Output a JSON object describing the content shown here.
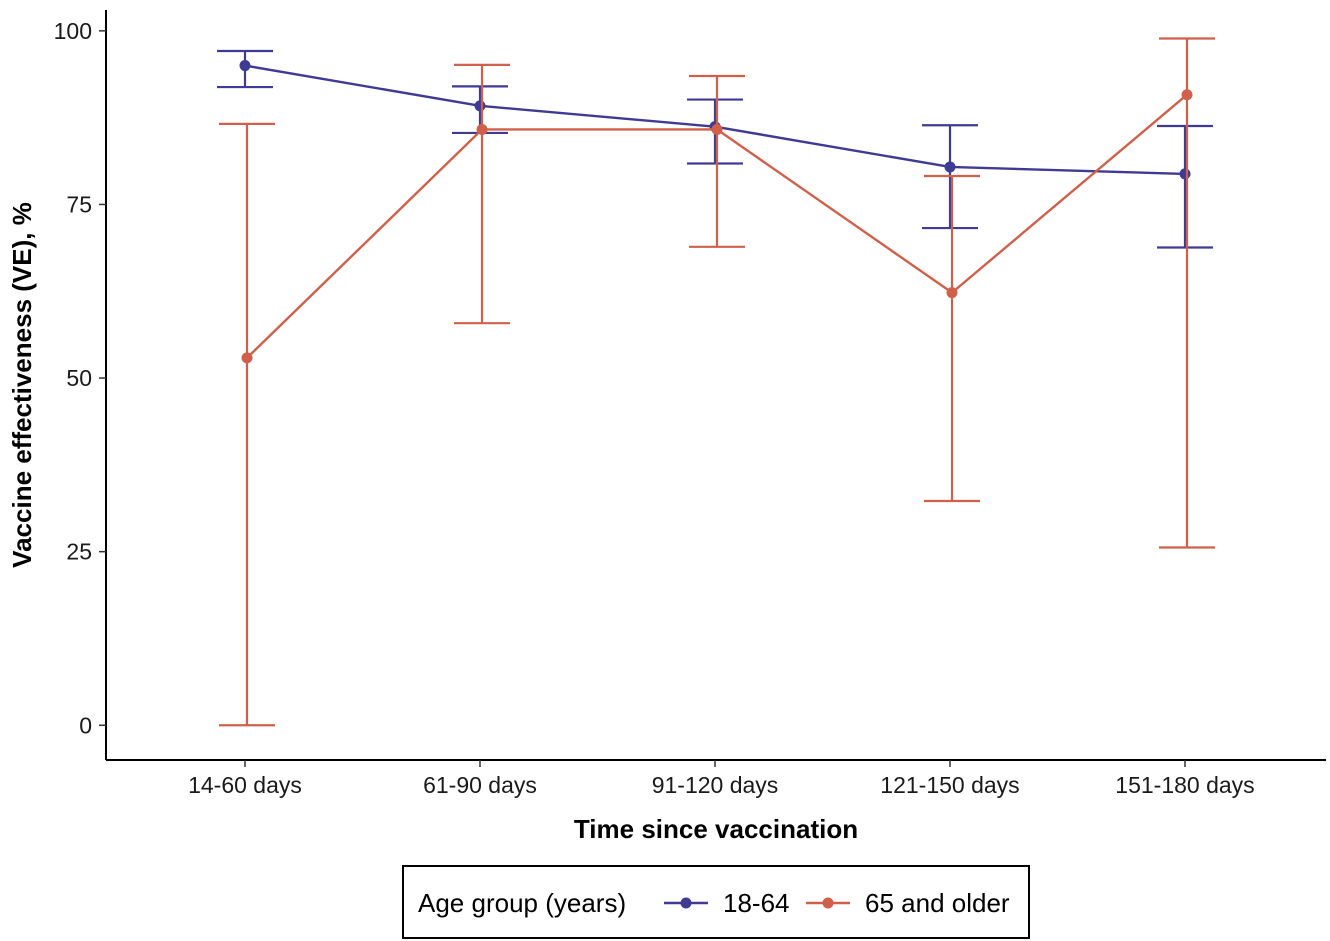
{
  "chart_data": {
    "type": "line",
    "categories": [
      "14-60 days",
      "61-90 days",
      "91-120 days",
      "121-150 days",
      "151-180 days"
    ],
    "xlabel": "Time since vaccination",
    "ylabel": "Vaccine effectiveness (VE), %",
    "ylim": [
      -5,
      103
    ],
    "yticks": [
      0,
      25,
      50,
      75,
      100
    ],
    "grid": false,
    "legend": {
      "title": "Age group (years)",
      "position": "bottom"
    },
    "series": [
      {
        "name": "18-64",
        "color": "#3f3a93",
        "values": [
          95.0,
          89.2,
          86.2,
          80.4,
          79.4
        ],
        "lower": [
          91.9,
          85.3,
          80.9,
          71.6,
          68.8
        ],
        "upper": [
          97.1,
          92.0,
          90.1,
          86.4,
          86.3
        ]
      },
      {
        "name": "65 and older",
        "color": "#d0604a",
        "values": [
          52.9,
          85.8,
          85.8,
          62.3,
          90.8
        ],
        "lower": [
          0,
          57.9,
          68.9,
          32.3,
          25.6
        ],
        "upper": [
          86.6,
          95.1,
          93.5,
          79.1,
          98.9
        ]
      }
    ]
  }
}
